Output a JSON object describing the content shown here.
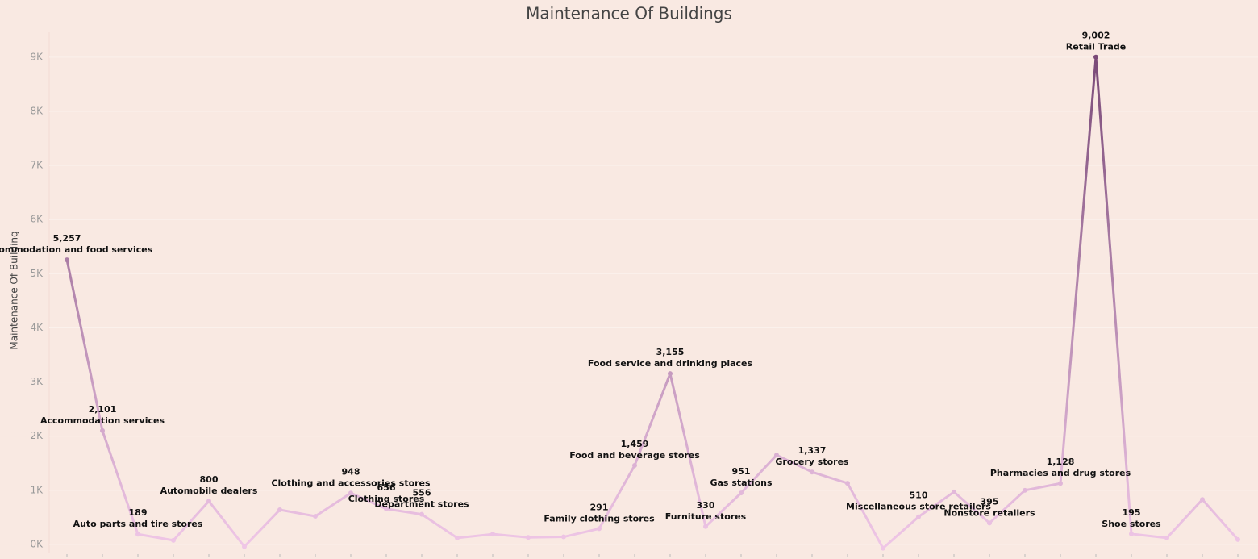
{
  "chart_data": {
    "type": "line",
    "title": "Maintenance Of Buildings",
    "y_label": "Maintenance Of Building",
    "categories": [
      "Accommodation and food services",
      "Accommodation services",
      "Auto parts and tire stores",
      null,
      "Automobile dealers",
      null,
      null,
      null,
      "Clothing and accessories stores",
      "Clothing stores",
      "Department stores",
      null,
      null,
      null,
      null,
      "Family clothing stores",
      "Food and beverage stores",
      "Food service and drinking places",
      "Furniture stores",
      "Gas stations",
      null,
      "Grocery stores",
      null,
      null,
      "Miscellaneous store retailers",
      null,
      "Nonstore retailers",
      null,
      "Pharmacies and drug stores",
      "Retail Trade",
      "Shoe stores",
      null,
      null,
      null
    ],
    "series": [
      {
        "name": "Maintenance Of Building",
        "color_low": "#efc6e6",
        "color_high": "#7a4a78",
        "values": [
          5257,
          2101,
          189,
          75,
          800,
          -40,
          640,
          520,
          948,
          656,
          556,
          120,
          190,
          130,
          140,
          291,
          1459,
          3155,
          330,
          951,
          1650,
          1337,
          1130,
          -70,
          510,
          970,
          395,
          1000,
          1128,
          9002,
          195,
          120,
          830,
          90
        ],
        "value_labels": [
          "5,257",
          "2,101",
          "189",
          null,
          "800",
          null,
          null,
          null,
          "948",
          "656",
          "556",
          null,
          null,
          null,
          null,
          "291",
          "1,459",
          "3,155",
          "330",
          "951",
          null,
          "1,337",
          null,
          null,
          "510",
          null,
          "395",
          null,
          "1,128",
          "9,002",
          "195",
          null,
          null,
          null
        ]
      }
    ],
    "ylim": [
      -150,
      9460
    ],
    "yticks": [
      {
        "value": 0,
        "label": "0K"
      },
      {
        "value": 1000,
        "label": "1K"
      },
      {
        "value": 2000,
        "label": "2K"
      },
      {
        "value": 3000,
        "label": "3K"
      },
      {
        "value": 4000,
        "label": "4K"
      },
      {
        "value": 5000,
        "label": "5K"
      },
      {
        "value": 6000,
        "label": "6K"
      },
      {
        "value": 7000,
        "label": "7K"
      },
      {
        "value": 8000,
        "label": "8K"
      },
      {
        "value": 9000,
        "label": "9K"
      }
    ],
    "grid": true
  }
}
